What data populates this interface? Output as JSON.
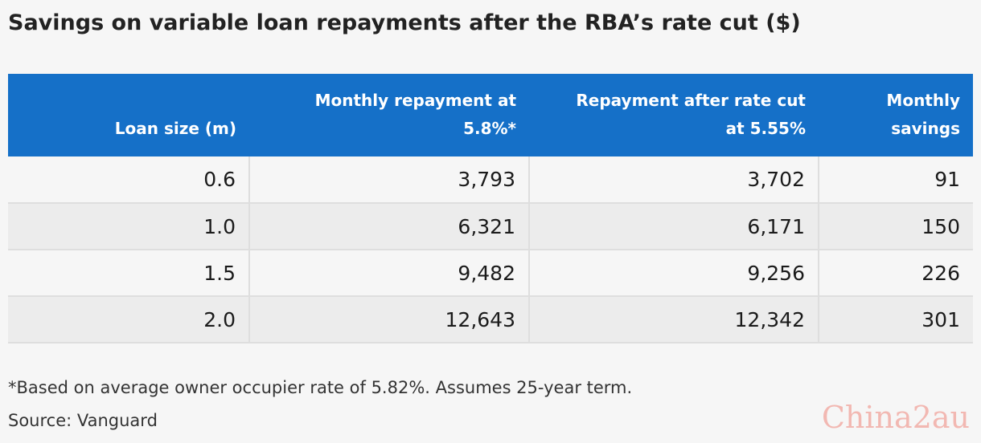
{
  "title": "Savings on variable loan repayments after the RBA’s rate cut ($)",
  "chart_data": {
    "type": "table",
    "columns": [
      "Loan size (m)",
      "Monthly repayment at 5.8%*",
      "Repayment after rate cut at 5.55%",
      "Monthly savings"
    ],
    "column_lines": [
      [
        "Loan size (m)"
      ],
      [
        "Monthly repayment at",
        "5.8%*"
      ],
      [
        "Repayment after rate cut",
        "at 5.55%"
      ],
      [
        "Monthly",
        "savings"
      ]
    ],
    "rows": [
      [
        "0.6",
        "3,793",
        "3,702",
        "91"
      ],
      [
        "1.0",
        "6,321",
        "6,171",
        "150"
      ],
      [
        "1.5",
        "9,482",
        "9,256",
        "226"
      ],
      [
        "2.0",
        "12,643",
        "12,342",
        "301"
      ]
    ],
    "header_color": "#1570c8",
    "row_colors": [
      "#f6f6f6",
      "#ececec"
    ]
  },
  "footnote": "*Based on average owner occupier rate of 5.82%. Assumes 25-year term.",
  "source": "Source: Vanguard",
  "watermark": "China2au"
}
